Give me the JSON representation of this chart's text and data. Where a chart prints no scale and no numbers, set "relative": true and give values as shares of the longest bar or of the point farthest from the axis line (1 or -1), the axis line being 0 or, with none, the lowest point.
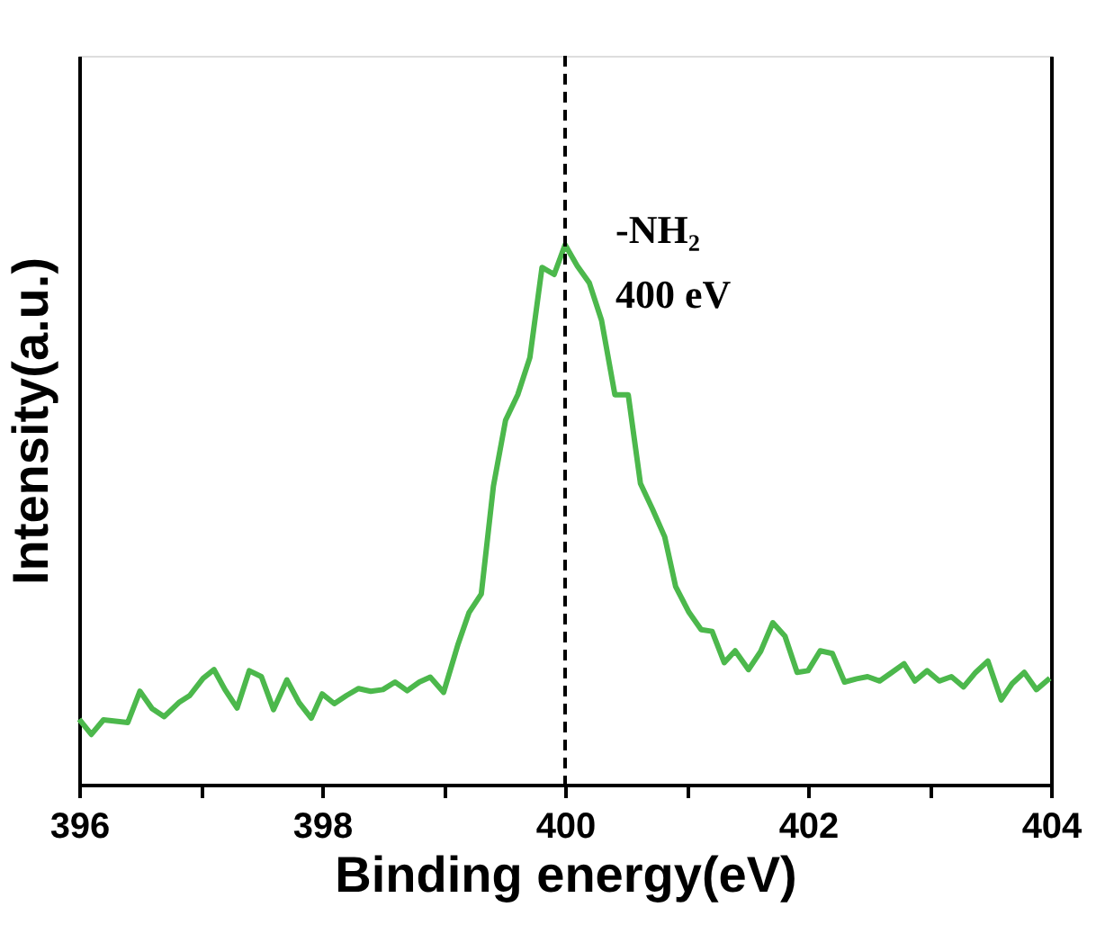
{
  "chart_data": {
    "type": "line",
    "xlabel": "Binding energy(eV)",
    "ylabel": "Intensity(a.u.)",
    "relative": true,
    "xlim": [
      396,
      404
    ],
    "xticks": [
      396,
      {
        "value": 397,
        "label": null
      },
      398,
      {
        "value": 399,
        "label": null
      },
      400,
      {
        "value": 401,
        "label": null
      },
      402,
      {
        "value": 403,
        "label": null
      },
      404
    ],
    "grid": false,
    "marker": "none",
    "line_style": "solid",
    "series": [
      {
        "color": "#4cb84c",
        "x": [
          396.0,
          396.1,
          396.2,
          396.4,
          396.5,
          396.6,
          396.7,
          396.82,
          396.91,
          397.02,
          397.11,
          397.2,
          397.3,
          397.4,
          397.5,
          397.6,
          397.71,
          397.81,
          397.91,
          398.0,
          398.1,
          398.2,
          398.3,
          398.4,
          398.5,
          398.6,
          398.7,
          398.8,
          398.89,
          399.0,
          399.12,
          399.21,
          399.31,
          399.41,
          399.51,
          399.61,
          399.71,
          399.81,
          399.91,
          400.0,
          400.1,
          400.2,
          400.3,
          400.41,
          400.52,
          400.62,
          400.72,
          400.82,
          400.91,
          401.02,
          401.12,
          401.21,
          401.31,
          401.4,
          401.51,
          401.61,
          401.71,
          401.81,
          401.91,
          402.0,
          402.1,
          402.2,
          402.3,
          402.4,
          402.49,
          402.59,
          402.69,
          402.79,
          402.88,
          402.98,
          403.08,
          403.18,
          403.28,
          403.38,
          403.48,
          403.59,
          403.68,
          403.78,
          403.88,
          403.99
        ],
        "values": [
          0.121,
          0.093,
          0.12,
          0.115,
          0.173,
          0.141,
          0.126,
          0.152,
          0.165,
          0.197,
          0.213,
          0.176,
          0.142,
          0.211,
          0.2,
          0.139,
          0.194,
          0.152,
          0.123,
          0.168,
          0.15,
          0.165,
          0.178,
          0.173,
          0.176,
          0.19,
          0.174,
          0.19,
          0.199,
          0.171,
          0.261,
          0.319,
          0.353,
          0.553,
          0.675,
          0.722,
          0.791,
          0.958,
          0.945,
          1.0,
          0.961,
          0.929,
          0.86,
          0.722,
          0.722,
          0.558,
          0.51,
          0.459,
          0.367,
          0.319,
          0.287,
          0.284,
          0.226,
          0.248,
          0.213,
          0.247,
          0.3,
          0.275,
          0.208,
          0.211,
          0.248,
          0.243,
          0.19,
          0.196,
          0.2,
          0.192,
          0.208,
          0.224,
          0.192,
          0.211,
          0.192,
          0.2,
          0.181,
          0.208,
          0.229,
          0.157,
          0.187,
          0.208,
          0.176,
          0.197
        ]
      }
    ],
    "ref_lines": [
      {
        "axis": "x",
        "value": 400,
        "line_style": "dashed",
        "color": "#000000"
      }
    ],
    "annotations": [
      {
        "text": "-NH₂",
        "x": 400,
        "y": 1.0
      },
      {
        "text": "400 eV",
        "x": 400,
        "y": 1.0
      }
    ]
  }
}
